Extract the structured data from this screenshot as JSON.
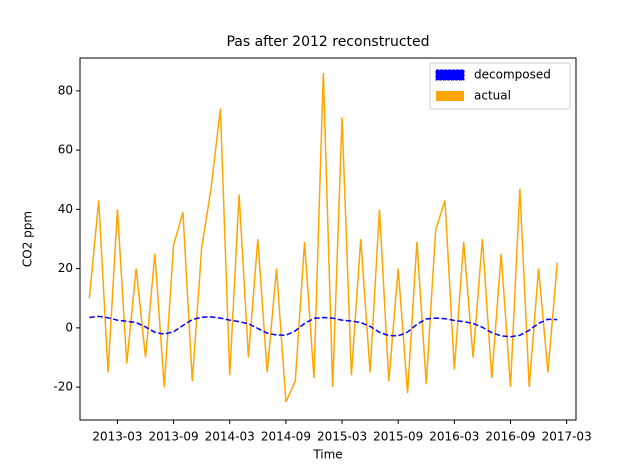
{
  "chart_data": {
    "type": "line",
    "title": "Pas after 2012 reconstructed",
    "xlabel": "Time",
    "ylabel": "CO2 ppm",
    "x": [
      "2012-12",
      "2013-01",
      "2013-02",
      "2013-03",
      "2013-04",
      "2013-05",
      "2013-06",
      "2013-07",
      "2013-08",
      "2013-09",
      "2013-10",
      "2013-11",
      "2013-12",
      "2014-01",
      "2014-02",
      "2014-03",
      "2014-04",
      "2014-05",
      "2014-06",
      "2014-07",
      "2014-08",
      "2014-09",
      "2014-10",
      "2014-11",
      "2014-12",
      "2015-01",
      "2015-02",
      "2015-03",
      "2015-04",
      "2015-05",
      "2015-06",
      "2015-07",
      "2015-08",
      "2015-09",
      "2015-10",
      "2015-11",
      "2015-12",
      "2016-01",
      "2016-02",
      "2016-03",
      "2016-04",
      "2016-05",
      "2016-06",
      "2016-07",
      "2016-08",
      "2016-09",
      "2016-10",
      "2016-11",
      "2016-12",
      "2017-01",
      "2017-02"
    ],
    "series": [
      {
        "name": "decomposed",
        "color": "#0000ff",
        "dashed": true,
        "values": [
          3.5,
          3.9,
          3.4,
          2.6,
          2.2,
          1.8,
          0.3,
          -1.5,
          -2.1,
          -1.3,
          0.8,
          2.8,
          3.6,
          3.7,
          3.3,
          2.6,
          2.1,
          1.4,
          -0.2,
          -1.8,
          -2.4,
          -2.5,
          -1.0,
          1.5,
          3.2,
          3.5,
          3.3,
          2.6,
          2.3,
          1.8,
          0.5,
          -1.5,
          -2.6,
          -2.7,
          -1.4,
          1.2,
          3.0,
          3.3,
          3.1,
          2.5,
          2.1,
          1.5,
          0.2,
          -1.6,
          -2.7,
          -3.0,
          -2.5,
          -0.8,
          1.5,
          2.9,
          2.8
        ]
      },
      {
        "name": "actual",
        "color": "#ffa500",
        "dashed": false,
        "values": [
          10,
          43,
          -15,
          40,
          -12,
          20,
          -10,
          25,
          -20,
          28,
          39,
          -18,
          27,
          47,
          74,
          -16,
          45,
          -10,
          30,
          -15,
          20,
          -25,
          -18,
          29,
          -17,
          86,
          -20,
          71,
          -16,
          30,
          -15,
          40,
          -18,
          20,
          -22,
          29,
          -19,
          33,
          43,
          -14,
          29,
          -10,
          30,
          -17,
          25,
          -20,
          47,
          -20,
          20,
          -15,
          22
        ]
      }
    ],
    "xlim": [
      "2012-11",
      "2017-04"
    ],
    "xticks": [
      "2013-03",
      "2013-09",
      "2014-03",
      "2014-09",
      "2015-03",
      "2015-09",
      "2016-03",
      "2016-09",
      "2017-03"
    ],
    "ylim": [
      -31.1,
      91.1
    ],
    "yticks": [
      -20,
      0,
      20,
      40,
      60,
      80
    ],
    "legend": "upper right"
  }
}
